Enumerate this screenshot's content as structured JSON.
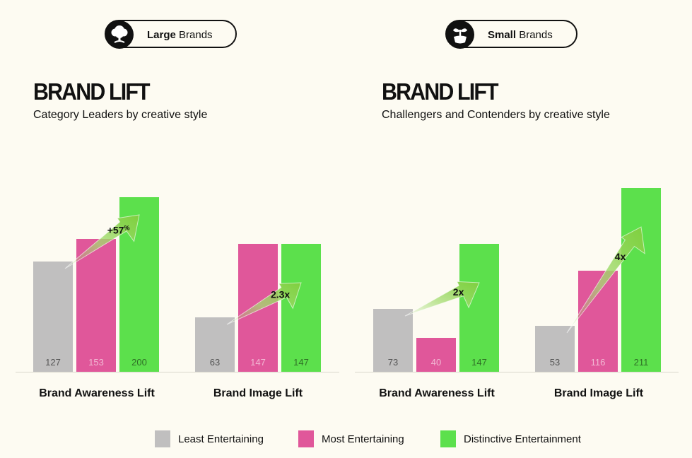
{
  "panels": [
    {
      "badge_bold": "Large",
      "badge_rest": " Brands",
      "badge_icon": "tree-icon",
      "title": "BRAND LIFT",
      "subtitle": "Category Leaders by creative style"
    },
    {
      "badge_bold": "Small",
      "badge_rest": " Brands",
      "badge_icon": "sprout-icon",
      "title": "BRAND LIFT",
      "subtitle": "Challengers and Contenders by creative style"
    }
  ],
  "legend": [
    {
      "label": "Least Entertaining",
      "color": "#c0bfbf"
    },
    {
      "label": "Most Entertaining",
      "color": "#e0579a"
    },
    {
      "label": "Distinctive Entertainment",
      "color": "#5ce04c"
    }
  ],
  "chart_data": [
    {
      "type": "bar",
      "title": "BRAND LIFT",
      "subtitle": "Category Leaders by creative style",
      "categories": [
        "Brand Awareness Lift",
        "Brand Image Lift"
      ],
      "series": [
        {
          "name": "Least Entertaining",
          "values": [
            127,
            63
          ]
        },
        {
          "name": "Most Entertaining",
          "values": [
            153,
            147
          ]
        },
        {
          "name": "Distinctive Entertainment",
          "values": [
            200,
            147
          ]
        }
      ],
      "bar_display_values": [
        [
          127,
          153,
          200
        ],
        [
          63,
          147,
          147
        ]
      ],
      "display_heights": [
        [
          156,
          188,
          247
        ],
        [
          77,
          181,
          181
        ]
      ],
      "annotations": [
        {
          "group": 0,
          "text": "+57",
          "sup": "%"
        },
        {
          "group": 1,
          "text": "2.3x",
          "sup": ""
        }
      ]
    },
    {
      "type": "bar",
      "title": "BRAND LIFT",
      "subtitle": "Challengers and Contenders by creative style",
      "categories": [
        "Brand Awareness Lift",
        "Brand Image Lift"
      ],
      "series": [
        {
          "name": "Least Entertaining",
          "values": [
            73,
            53
          ]
        },
        {
          "name": "Most Entertaining",
          "values": [
            40,
            116
          ]
        },
        {
          "name": "Distinctive Entertainment",
          "values": [
            147,
            211
          ]
        }
      ],
      "bar_display_values": [
        [
          73,
          40,
          147
        ],
        [
          53,
          116,
          211
        ]
      ],
      "display_heights": [
        [
          89,
          48,
          181
        ],
        [
          65,
          143,
          260
        ]
      ],
      "annotations": [
        {
          "group": 0,
          "text": "2x",
          "sup": ""
        },
        {
          "group": 1,
          "text": "4x",
          "sup": ""
        }
      ]
    }
  ]
}
